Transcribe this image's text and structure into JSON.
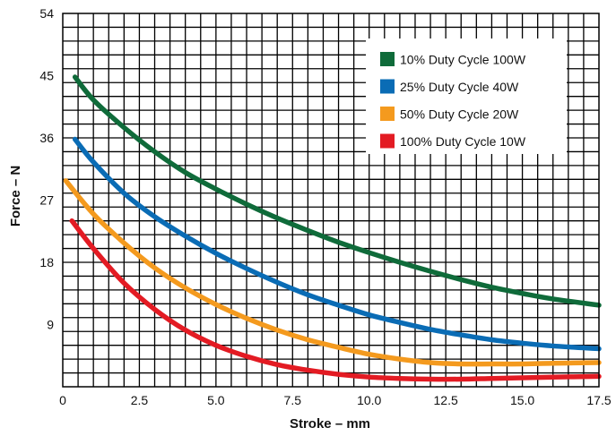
{
  "chart_data": {
    "type": "line",
    "xlabel": "Stroke – mm",
    "ylabel": "Force – N",
    "xlim": [
      0,
      17.5
    ],
    "ylim": [
      0,
      54
    ],
    "x_ticks": [
      "0",
      "2.5",
      "5.0",
      "7.5",
      "10.0",
      "12.5",
      "15.0",
      "17.5"
    ],
    "y_ticks": [
      "9",
      "18",
      "27",
      "36",
      "45",
      "54"
    ],
    "grid": true,
    "legend_position": "top-right",
    "series": [
      {
        "name": "10% Duty Cycle 100W",
        "color": "#0f6b3a",
        "points": [
          [
            0.4,
            44.8
          ],
          [
            1.0,
            41.5
          ],
          [
            2.0,
            37.5
          ],
          [
            3.0,
            34.0
          ],
          [
            4.0,
            31.0
          ],
          [
            5.0,
            28.6
          ],
          [
            6.0,
            26.4
          ],
          [
            7.0,
            24.4
          ],
          [
            8.0,
            22.6
          ],
          [
            9.0,
            20.9
          ],
          [
            10.0,
            19.4
          ],
          [
            11.0,
            18.0
          ],
          [
            12.0,
            16.7
          ],
          [
            13.0,
            15.5
          ],
          [
            14.0,
            14.4
          ],
          [
            15.0,
            13.5
          ],
          [
            16.0,
            12.7
          ],
          [
            17.5,
            11.8
          ]
        ]
      },
      {
        "name": "25% Duty Cycle 40W",
        "color": "#0a6cb5",
        "points": [
          [
            0.4,
            35.8
          ],
          [
            1.0,
            32.5
          ],
          [
            2.0,
            28.0
          ],
          [
            3.0,
            24.6
          ],
          [
            4.0,
            21.8
          ],
          [
            5.0,
            19.3
          ],
          [
            6.0,
            17.1
          ],
          [
            7.0,
            15.1
          ],
          [
            8.0,
            13.3
          ],
          [
            9.0,
            11.8
          ],
          [
            10.0,
            10.4
          ],
          [
            11.0,
            9.3
          ],
          [
            12.0,
            8.3
          ],
          [
            13.0,
            7.5
          ],
          [
            14.0,
            6.8
          ],
          [
            15.0,
            6.3
          ],
          [
            16.0,
            5.9
          ],
          [
            17.5,
            5.5
          ]
        ]
      },
      {
        "name": "50% Duty Cycle 20W",
        "color": "#f49a1e",
        "points": [
          [
            0.1,
            29.8
          ],
          [
            1.0,
            25.0
          ],
          [
            2.0,
            20.8
          ],
          [
            3.0,
            17.2
          ],
          [
            4.0,
            14.3
          ],
          [
            5.0,
            11.9
          ],
          [
            6.0,
            9.9
          ],
          [
            7.0,
            8.2
          ],
          [
            8.0,
            6.8
          ],
          [
            9.0,
            5.7
          ],
          [
            10.0,
            4.7
          ],
          [
            11.0,
            4.0
          ],
          [
            12.0,
            3.5
          ],
          [
            13.0,
            3.3
          ],
          [
            14.0,
            3.3
          ],
          [
            15.0,
            3.3
          ],
          [
            16.0,
            3.4
          ],
          [
            17.5,
            3.5
          ]
        ]
      },
      {
        "name": "100% Duty Cycle 10W",
        "color": "#e31b23",
        "points": [
          [
            0.3,
            24.0
          ],
          [
            1.0,
            20.0
          ],
          [
            2.0,
            15.0
          ],
          [
            3.0,
            11.2
          ],
          [
            4.0,
            8.2
          ],
          [
            5.0,
            6.0
          ],
          [
            6.0,
            4.4
          ],
          [
            7.0,
            3.2
          ],
          [
            8.0,
            2.4
          ],
          [
            9.0,
            1.8
          ],
          [
            10.0,
            1.4
          ],
          [
            11.0,
            1.2
          ],
          [
            12.0,
            1.1
          ],
          [
            13.0,
            1.1
          ],
          [
            14.0,
            1.2
          ],
          [
            15.0,
            1.3
          ],
          [
            16.0,
            1.4
          ],
          [
            17.5,
            1.5
          ]
        ]
      }
    ]
  }
}
